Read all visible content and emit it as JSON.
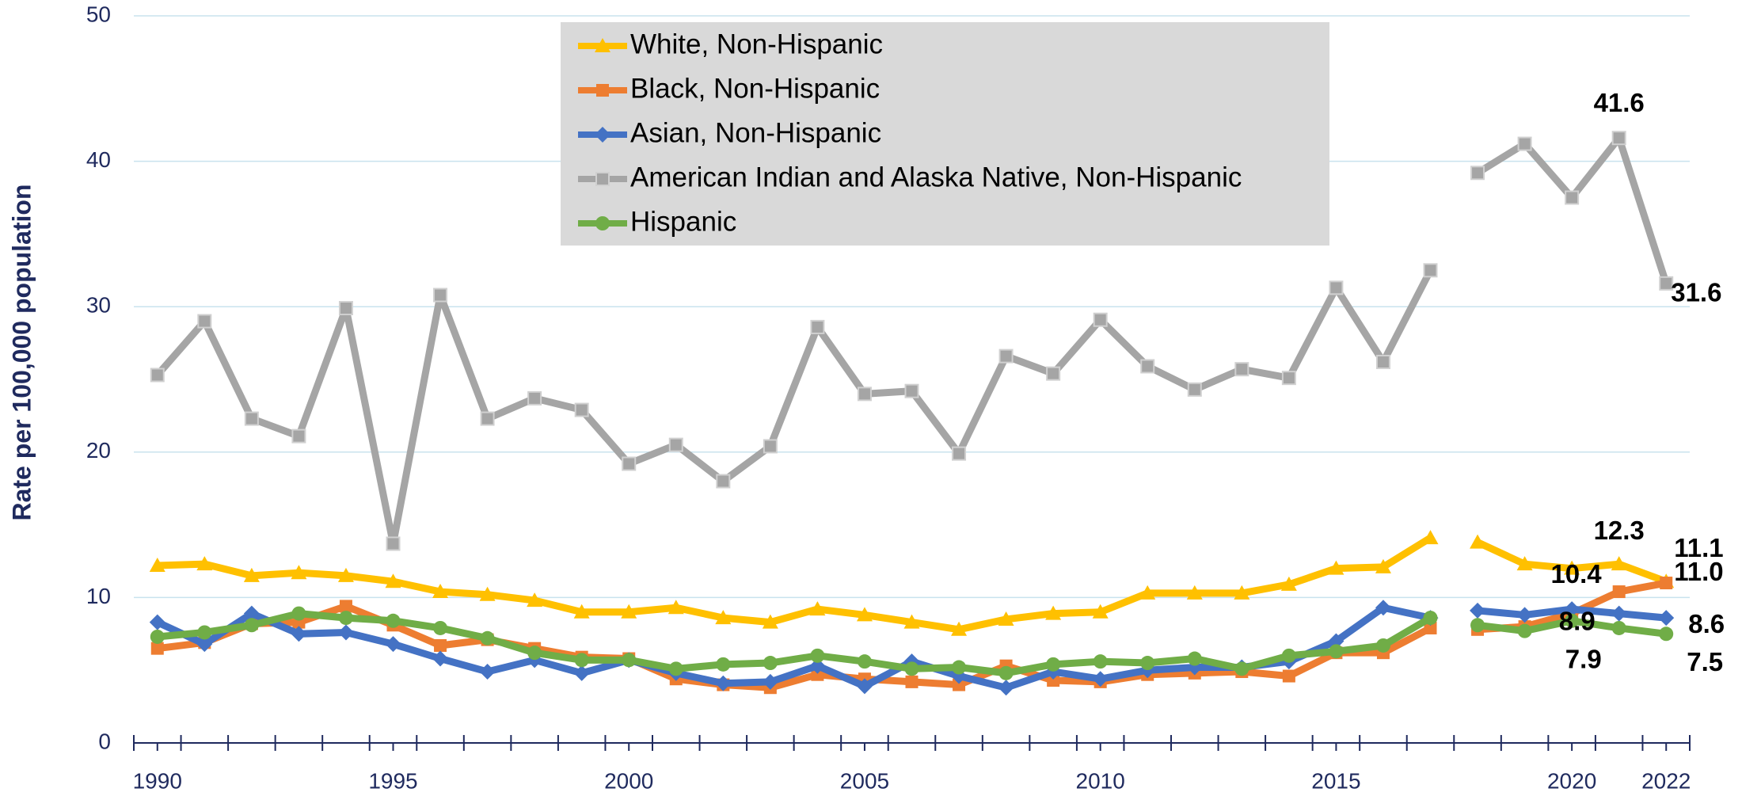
{
  "chart_data": {
    "type": "line",
    "y_label": "Rate per 100,000 population",
    "x": [
      1990,
      1991,
      1992,
      1993,
      1994,
      1995,
      1996,
      1997,
      1998,
      1999,
      2000,
      2001,
      2002,
      2003,
      2004,
      2005,
      2006,
      2007,
      2008,
      2009,
      2010,
      2011,
      2012,
      2013,
      2014,
      2015,
      2016,
      2017,
      2018,
      2019,
      2020,
      2021,
      2022
    ],
    "line_break_after": 2017,
    "xlim": [
      1989.5,
      2022.5
    ],
    "xticks": [
      1990,
      1995,
      2000,
      2005,
      2010,
      2015,
      2020,
      2022
    ],
    "ylim": [
      0,
      50
    ],
    "yticks": [
      0,
      10,
      20,
      30,
      40,
      50
    ],
    "grid": true,
    "legend": "top",
    "series": [
      {
        "name": "White, Non-Hispanic",
        "color": "#FFC000",
        "marker": "triangle",
        "values": [
          12.2,
          12.3,
          11.5,
          11.7,
          11.5,
          11.1,
          10.4,
          10.2,
          9.8,
          9.0,
          9.0,
          9.3,
          8.6,
          8.3,
          9.2,
          8.8,
          8.3,
          7.8,
          8.5,
          8.9,
          9.0,
          10.3,
          10.3,
          10.3,
          10.9,
          12.0,
          12.1,
          14.1,
          13.8,
          12.3,
          12.0,
          12.3,
          11.1
        ],
        "value_labels": [
          null,
          null,
          null,
          null,
          null,
          null,
          null,
          null,
          null,
          null,
          null,
          null,
          null,
          null,
          null,
          null,
          null,
          null,
          null,
          null,
          null,
          null,
          null,
          null,
          null,
          null,
          null,
          null,
          null,
          null,
          null,
          "12.3",
          "11.1"
        ]
      },
      {
        "name": "Black, Non-Hispanic",
        "color": "#ED7D31",
        "marker": "square",
        "values": [
          6.5,
          6.9,
          8.2,
          8.3,
          9.4,
          8.1,
          6.7,
          7.1,
          6.5,
          5.9,
          5.8,
          4.4,
          4.0,
          3.8,
          4.7,
          4.4,
          4.2,
          4.0,
          5.3,
          4.3,
          4.2,
          4.7,
          4.8,
          4.9,
          4.6,
          6.2,
          6.2,
          7.9,
          7.8,
          8.0,
          8.9,
          10.4,
          11.0
        ],
        "value_labels": [
          null,
          null,
          null,
          null,
          null,
          null,
          null,
          null,
          null,
          null,
          null,
          null,
          null,
          null,
          null,
          null,
          null,
          null,
          null,
          null,
          null,
          null,
          null,
          null,
          null,
          null,
          null,
          null,
          null,
          null,
          null,
          "10.4",
          "11.0"
        ]
      },
      {
        "name": "Asian, Non-Hispanic",
        "color": "#4472C4",
        "marker": "diamond",
        "values": [
          8.3,
          6.8,
          8.9,
          7.5,
          7.6,
          6.8,
          5.8,
          4.9,
          5.7,
          4.8,
          5.7,
          4.8,
          4.1,
          4.2,
          5.3,
          3.9,
          5.6,
          4.6,
          3.8,
          4.9,
          4.4,
          5.0,
          5.2,
          5.2,
          5.6,
          7.0,
          9.3,
          8.6,
          9.1,
          8.8,
          9.2,
          8.9,
          8.6
        ],
        "value_labels": [
          null,
          null,
          null,
          null,
          null,
          null,
          null,
          null,
          null,
          null,
          null,
          null,
          null,
          null,
          null,
          null,
          null,
          null,
          null,
          null,
          null,
          null,
          null,
          null,
          null,
          null,
          null,
          null,
          null,
          null,
          null,
          "8.9",
          "8.6"
        ]
      },
      {
        "name": "American Indian and Alaska Native, Non-Hispanic",
        "color": "#A5A5A5",
        "marker": "plus-square",
        "values": [
          25.3,
          29.0,
          22.3,
          21.1,
          29.9,
          13.7,
          30.8,
          22.3,
          23.7,
          22.9,
          19.2,
          20.5,
          18.0,
          20.4,
          28.6,
          24.0,
          24.2,
          19.9,
          26.6,
          25.4,
          29.1,
          25.9,
          24.3,
          25.7,
          25.1,
          31.3,
          26.2,
          32.5,
          39.2,
          41.2,
          37.5,
          41.6,
          31.6
        ],
        "value_labels": [
          null,
          null,
          null,
          null,
          null,
          null,
          null,
          null,
          null,
          null,
          null,
          null,
          null,
          null,
          null,
          null,
          null,
          null,
          null,
          null,
          null,
          null,
          null,
          null,
          null,
          null,
          null,
          null,
          null,
          null,
          null,
          "41.6",
          "31.6"
        ]
      },
      {
        "name": "Hispanic",
        "color": "#70AD47",
        "marker": "circle",
        "values": [
          7.3,
          7.6,
          8.1,
          8.9,
          8.6,
          8.4,
          7.9,
          7.2,
          6.2,
          5.7,
          5.7,
          5.1,
          5.4,
          5.5,
          6.0,
          5.6,
          5.1,
          5.2,
          4.8,
          5.4,
          5.6,
          5.5,
          5.8,
          5.1,
          6.0,
          6.3,
          6.7,
          8.6,
          8.1,
          7.7,
          8.4,
          7.9,
          7.5
        ],
        "value_labels": [
          null,
          null,
          null,
          null,
          null,
          null,
          null,
          null,
          null,
          null,
          null,
          null,
          null,
          null,
          null,
          null,
          null,
          null,
          null,
          null,
          null,
          null,
          null,
          null,
          null,
          null,
          null,
          null,
          null,
          null,
          null,
          "7.9",
          "7.5"
        ]
      }
    ]
  }
}
